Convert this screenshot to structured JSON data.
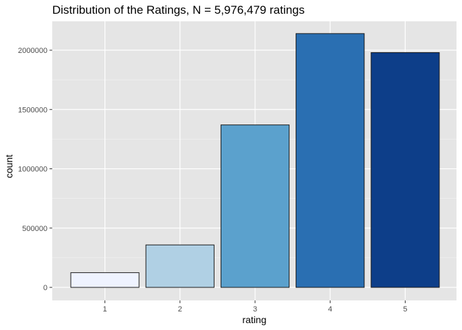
{
  "chart_data": {
    "type": "bar",
    "title": "Distribution of the Ratings, N = 5,976,479 ratings",
    "xlabel": "rating",
    "ylabel": "count",
    "categories": [
      "1",
      "2",
      "3",
      "4",
      "5"
    ],
    "values": [
      124000,
      358000,
      1370000,
      2140000,
      1980000
    ],
    "ylim": [
      0,
      2250000
    ],
    "yticks": [
      0,
      500000,
      1000000,
      1500000,
      2000000
    ],
    "ytick_labels": [
      "0",
      "500000",
      "1000000",
      "1500000",
      "2000000"
    ],
    "grid": true,
    "bar_colors": [
      "#EFF3FF",
      "#B0D0E4",
      "#5BA1CD",
      "#2A6FB2",
      "#0D3E89"
    ],
    "bar_outline_color": "#1a1a1a",
    "panel_background": "#E5E5E5",
    "gridline_color": "#FFFFFF"
  }
}
